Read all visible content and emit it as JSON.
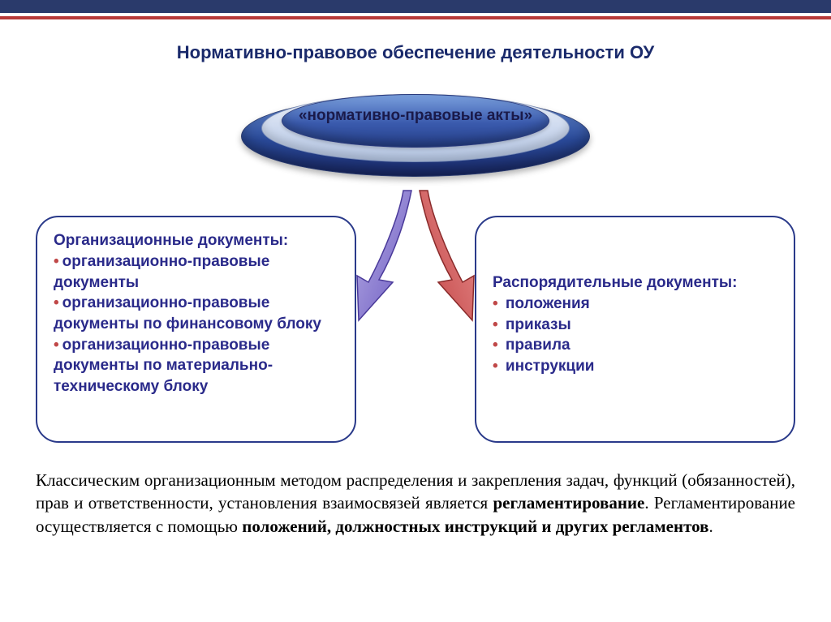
{
  "colors": {
    "navy": "#2a3a6b",
    "red_bar": "#b73a3a",
    "title_color": "#1a2a6b",
    "card_border": "#2a3a8a",
    "bullet_text": "#2a2a8a",
    "bullet_marker": "#c04848",
    "arrow_left_fill": "#7a6ac7",
    "arrow_left_stroke": "#4a3a9a",
    "arrow_right_fill": "#d05a5a",
    "arrow_right_stroke": "#8a2a2a",
    "disc_outer": "#2a4a9a",
    "disc_mid": "#cdd9ee",
    "disc_inner": "#3a5aad"
  },
  "title": "Нормативно-правовое обеспечение деятельности ОУ",
  "disc_label": "«нормативно-правовые акты»",
  "left_card": {
    "title": "Организационные документы:",
    "items": [
      "организационно-правовые документы",
      "организационно-правовые документы по финансовому блоку",
      "организационно-правовые документы по материально-техническому блоку"
    ]
  },
  "right_card": {
    "title": "Распорядительные документы:",
    "items": [
      "положения",
      "приказы",
      "правила",
      "инструкции"
    ]
  },
  "footer": {
    "pre": "Классическим организационным методом распределения и закрепления задач, функций (обязанностей), прав и ответственности, установления взаимосвязей является ",
    "bold1": "регламентирование",
    "mid": ". Регламентирование осуществляется с помощью ",
    "bold2": "положений, должностных инструкций и других регламентов",
    "post": "."
  }
}
